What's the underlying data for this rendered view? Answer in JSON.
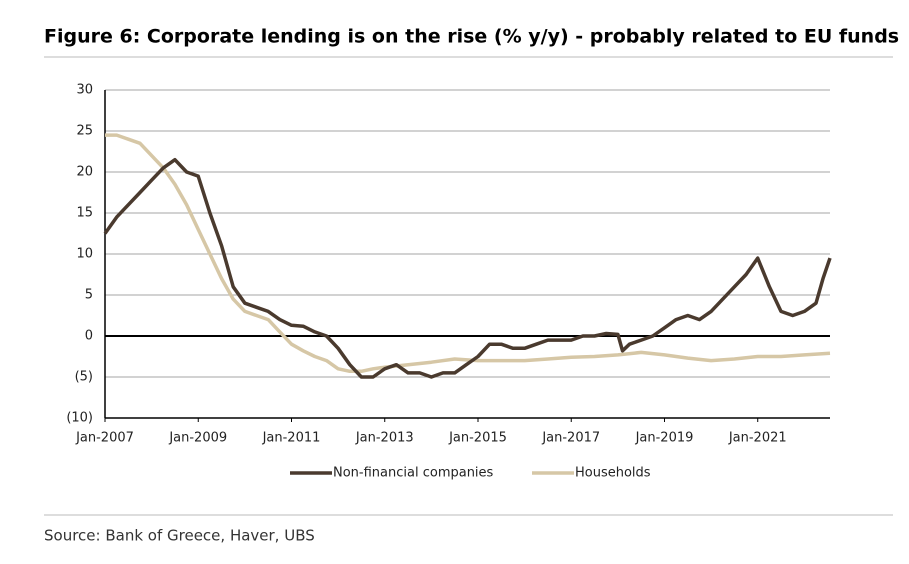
{
  "chart_data": {
    "type": "line",
    "title": "Figure 6: Corporate lending is on the rise (% y/y) - probably related to EU funds",
    "source": "Source: Bank of Greece, Haver, UBS",
    "xlim": [
      2007,
      2022.55
    ],
    "xticks": [
      {
        "value": 2007,
        "label": "Jan-2007"
      },
      {
        "value": 2009,
        "label": "Jan-2009"
      },
      {
        "value": 2011,
        "label": "Jan-2011"
      },
      {
        "value": 2013,
        "label": "Jan-2013"
      },
      {
        "value": 2015,
        "label": "Jan-2015"
      },
      {
        "value": 2017,
        "label": "Jan-2017"
      },
      {
        "value": 2019,
        "label": "Jan-2019"
      },
      {
        "value": 2021,
        "label": "Jan-2021"
      }
    ],
    "ylim": [
      -10,
      30
    ],
    "yticks": [
      {
        "value": -10,
        "label": "(10)"
      },
      {
        "value": -5,
        "label": "(5)"
      },
      0,
      5,
      10,
      15,
      20,
      25,
      30
    ],
    "grid": true,
    "legend": "bottom",
    "series": [
      {
        "name": "Non-financial companies",
        "color": "#4a3a2e",
        "x": [
          2007,
          2007.25,
          2007.5,
          2007.75,
          2008,
          2008.25,
          2008.5,
          2008.75,
          2009,
          2009.25,
          2009.5,
          2009.75,
          2010,
          2010.25,
          2010.5,
          2010.75,
          2011,
          2011.25,
          2011.5,
          2011.75,
          2012,
          2012.25,
          2012.5,
          2012.75,
          2013,
          2013.25,
          2013.5,
          2013.75,
          2014,
          2014.25,
          2014.5,
          2014.75,
          2015,
          2015.25,
          2015.5,
          2015.75,
          2016,
          2016.25,
          2016.5,
          2016.75,
          2017,
          2017.25,
          2017.5,
          2017.75,
          2018,
          2018.1,
          2018.25,
          2018.5,
          2018.75,
          2019,
          2019.25,
          2019.5,
          2019.75,
          2020,
          2020.25,
          2020.5,
          2020.75,
          2021,
          2021.25,
          2021.5,
          2021.75,
          2022,
          2022.25,
          2022.4,
          2022.55
        ],
        "values": [
          12.5,
          14.5,
          16,
          17.5,
          19,
          20.5,
          21.5,
          20,
          19.5,
          15,
          11,
          6,
          4,
          3.5,
          3,
          2,
          1.3,
          1.2,
          0.5,
          0,
          -1.5,
          -3.5,
          -5,
          -5,
          -4,
          -3.5,
          -4.5,
          -4.5,
          -5,
          -4.5,
          -4.5,
          -3.5,
          -2.5,
          -1,
          -1,
          -1.5,
          -1.5,
          -1,
          -0.5,
          -0.5,
          -0.5,
          0,
          0,
          0.3,
          0.2,
          -1.8,
          -1,
          -0.5,
          0,
          1,
          2,
          2.5,
          2,
          3,
          4.5,
          6,
          7.5,
          9.5,
          6,
          3,
          2.5,
          3,
          4,
          7,
          9.5
        ]
      },
      {
        "name": "Households",
        "color": "#d6c7a6",
        "x": [
          2007,
          2007.25,
          2007.5,
          2007.75,
          2008,
          2008.25,
          2008.5,
          2008.75,
          2009,
          2009.25,
          2009.5,
          2009.75,
          2010,
          2010.25,
          2010.5,
          2010.75,
          2011,
          2011.25,
          2011.5,
          2011.75,
          2012,
          2012.25,
          2012.5,
          2012.75,
          2013,
          2013.5,
          2014,
          2014.5,
          2015,
          2015.5,
          2016,
          2016.5,
          2017,
          2017.5,
          2018,
          2018.5,
          2019,
          2019.5,
          2020,
          2020.5,
          2021,
          2021.5,
          2022,
          2022.55
        ],
        "values": [
          24.5,
          24.5,
          24,
          23.5,
          22,
          20.5,
          18.5,
          16,
          13,
          10,
          7,
          4.5,
          3,
          2.5,
          2,
          0.5,
          -1,
          -1.8,
          -2.5,
          -3,
          -4,
          -4.3,
          -4.3,
          -4,
          -3.8,
          -3.5,
          -3.2,
          -2.8,
          -3,
          -3,
          -3,
          -2.8,
          -2.6,
          -2.5,
          -2.3,
          -2,
          -2.3,
          -2.7,
          -3,
          -2.8,
          -2.5,
          -2.5,
          -2.3,
          -2.1
        ]
      }
    ]
  }
}
